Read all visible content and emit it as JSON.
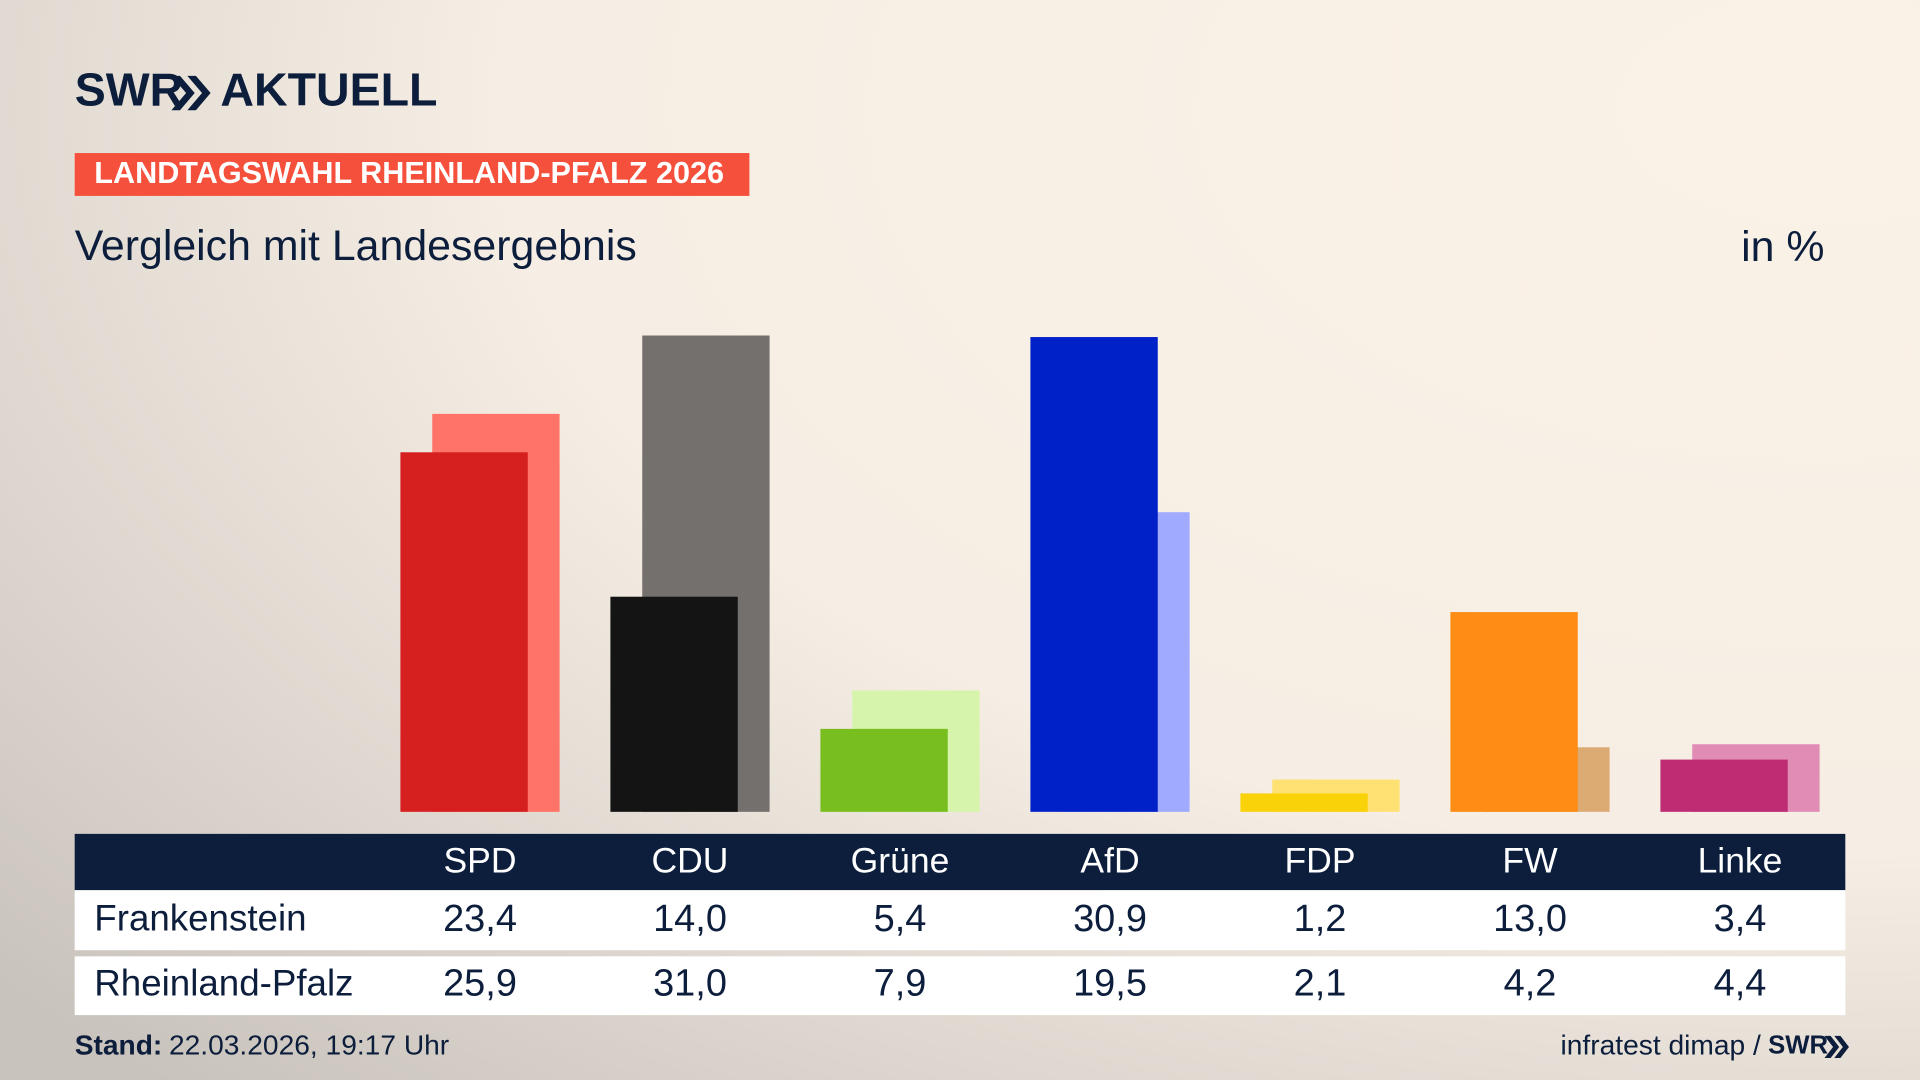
{
  "chart_data": {
    "type": "bar",
    "brand": "SWR",
    "brand_product": "AKTUELL",
    "kicker": "LANDTAGSWAHL RHEINLAND-PFALZ 2026",
    "title": "Vergleich mit Landesergebnis",
    "unit": "in %",
    "categories": [
      "SPD",
      "CDU",
      "Grüne",
      "AfD",
      "FDP",
      "FW",
      "Linke"
    ],
    "series": [
      {
        "name": "Frankenstein",
        "colors": [
          "#d61f1f",
          "#141414",
          "#78be1e",
          "#0021c8",
          "#fad20a",
          "#ff8c14",
          "#be2d73"
        ],
        "values": [
          23.4,
          14.0,
          5.4,
          30.9,
          1.2,
          13.0,
          3.4
        ],
        "value_labels": [
          "23,4",
          "14,0",
          "5,4",
          "30,9",
          "1,2",
          "13,0",
          "3,4"
        ]
      },
      {
        "name": "Rheinland-Pfalz",
        "colors": [
          "#ff7369",
          "#73706e",
          "#d7f5aa",
          "#a0aaff",
          "#ffe173",
          "#dcaa73",
          "#e18cb4"
        ],
        "values": [
          25.9,
          31.0,
          7.9,
          19.5,
          2.1,
          4.2,
          4.4
        ],
        "value_labels": [
          "25,9",
          "31,0",
          "7,9",
          "19,5",
          "2,1",
          "4,2",
          "4,4"
        ]
      }
    ],
    "stand_label": "Stand:",
    "stand": "22.03.2026, 19:17 Uhr",
    "source": "infratest dimap /",
    "source_brand": "SWR"
  }
}
